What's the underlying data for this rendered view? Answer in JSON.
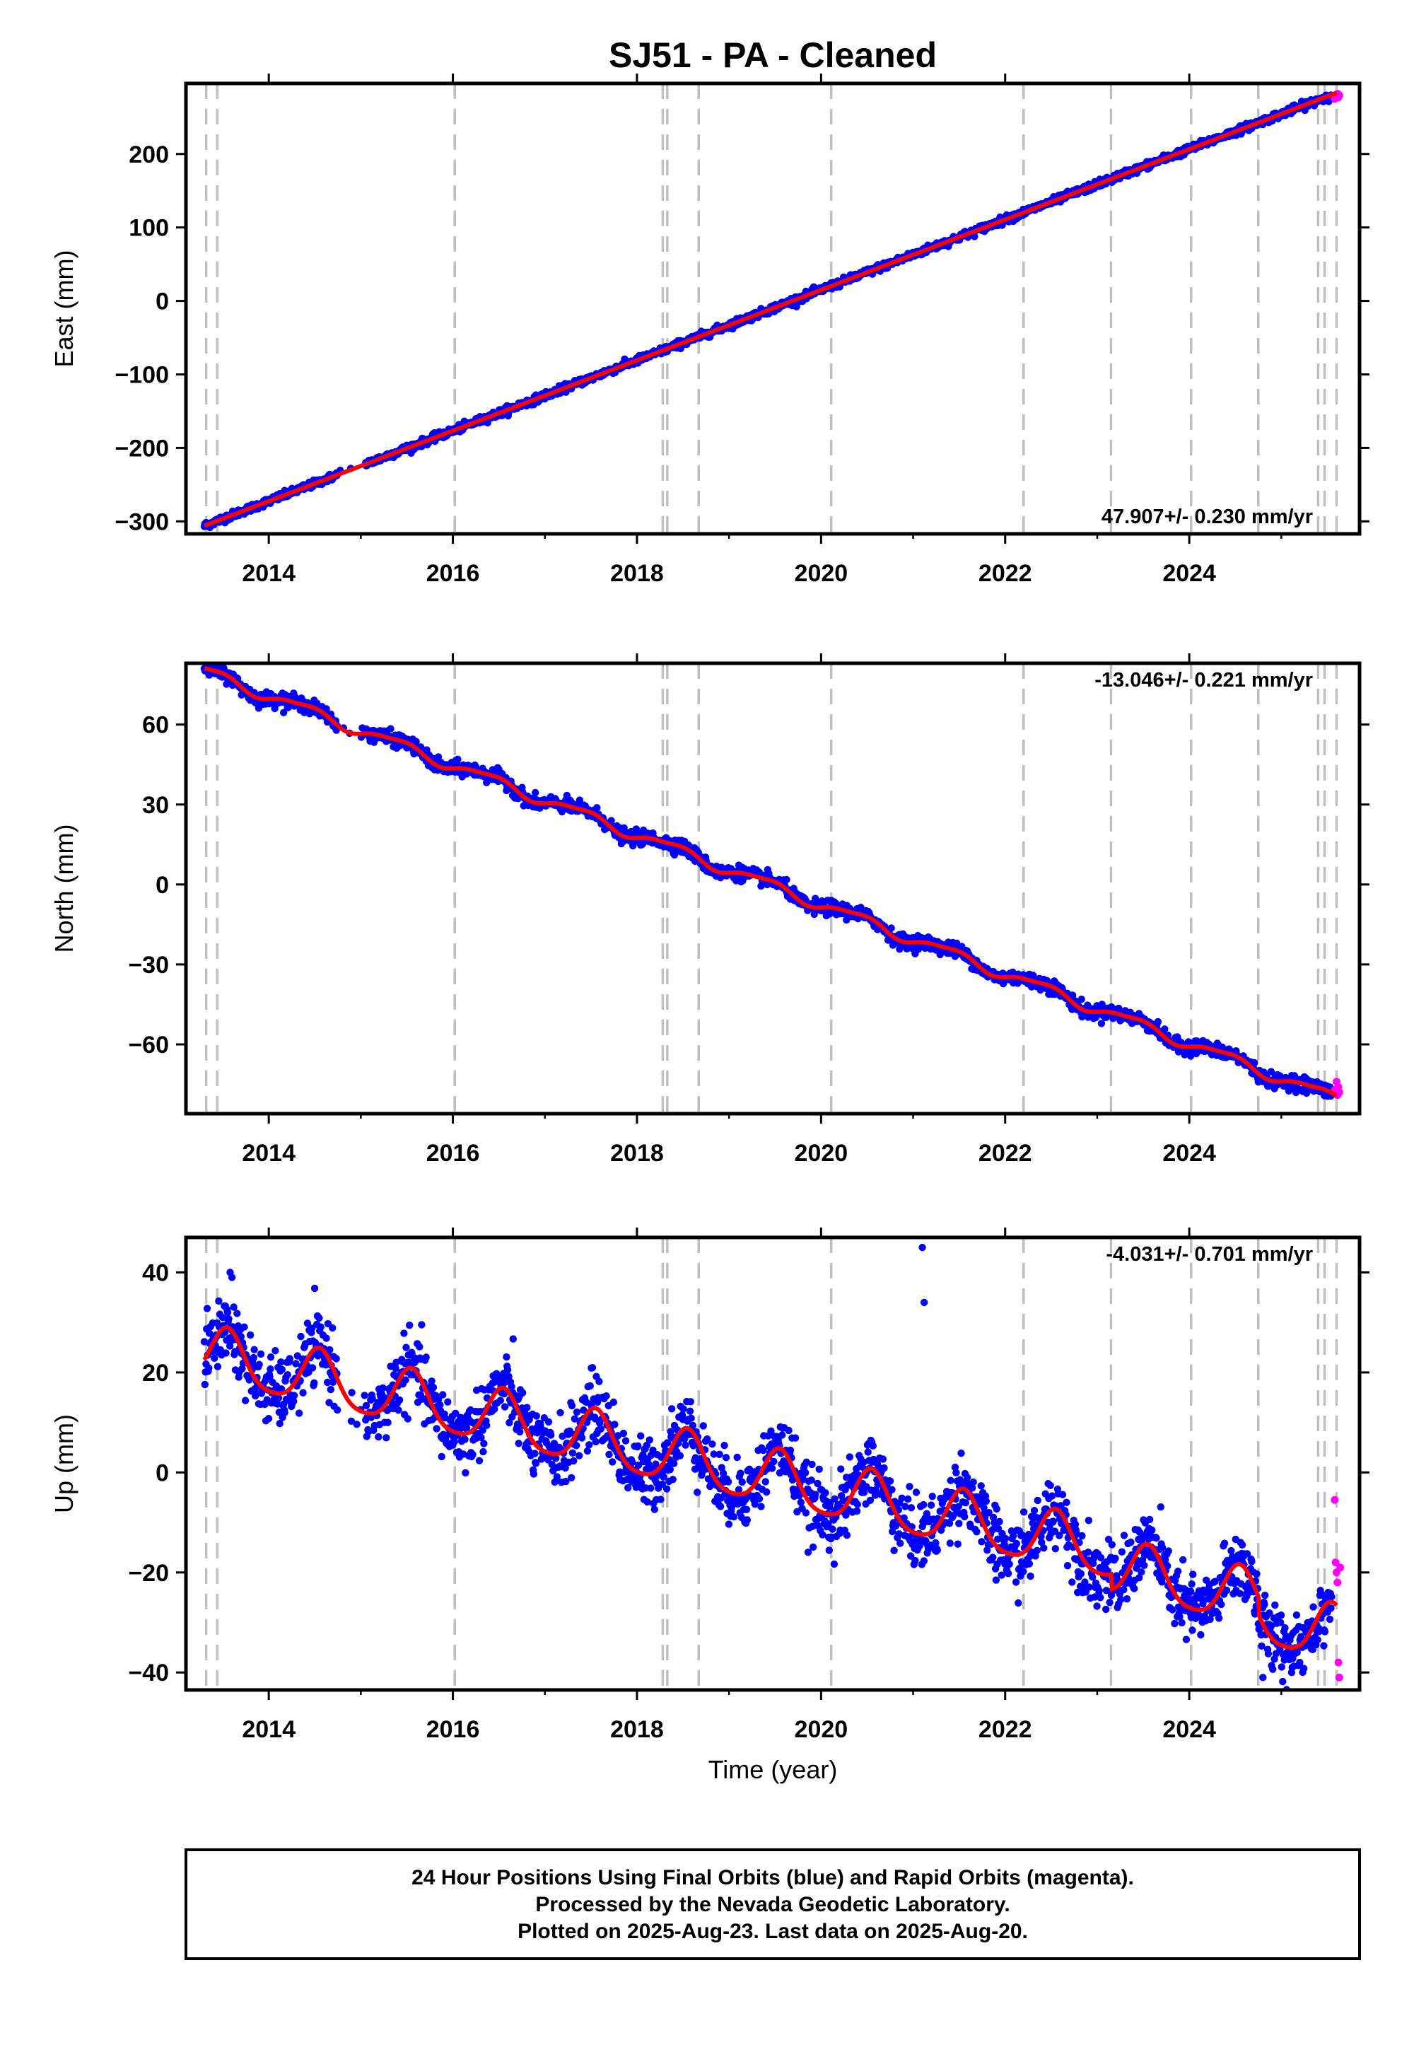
{
  "title": "SJ51  - PA - Cleaned",
  "xlabel": "Time (year)",
  "footer": {
    "line1": "24 Hour Positions Using Final Orbits (blue) and Rapid Orbits (magenta).",
    "line2": "Processed by the Nevada Geodetic Laboratory.",
    "line3": "Plotted on 2025-Aug-23. Last data on 2025-Aug-20."
  },
  "colors": {
    "final_orbits": "#0000ff",
    "rapid_orbits": "#ff00ff",
    "model": "#ff0000",
    "event_lines": "#bfbfbf",
    "frame": "#000000"
  },
  "chart_data": [
    {
      "type": "scatter",
      "id": "east",
      "ylabel": "East (mm)",
      "xlim": [
        2013.1,
        2025.85
      ],
      "ylim": [
        -317,
        296
      ],
      "yticks": [
        -300,
        -200,
        -100,
        0,
        100,
        200
      ],
      "xticks": [
        2014,
        2016,
        2018,
        2020,
        2022,
        2024
      ],
      "rate_label": "47.907+/- 0.230 mm/yr",
      "rate_position": "bottom-right",
      "series": [
        {
          "name": "Final Orbits",
          "color": "#0000ff",
          "model": {
            "type": "linear_plus_seasonal",
            "t0": 2013.3,
            "y0": -306,
            "rate": 47.907,
            "annual_amp": 0.0,
            "annual_phase": 0.0,
            "semiannual_amp": 0.0,
            "semiannual_phase": 0.0,
            "offsets": [],
            "scatter": 2.5,
            "t_start": 2013.3,
            "t_end": 2025.55
          }
        },
        {
          "name": "Rapid Orbits",
          "color": "#ff00ff",
          "points": [
            [
              2025.58,
              275
            ],
            [
              2025.6,
              279
            ],
            [
              2025.61,
              282
            ],
            [
              2025.62,
              277
            ],
            [
              2025.63,
              280
            ]
          ]
        }
      ],
      "event_lines": [
        2013.32,
        2013.44,
        2016.02,
        2018.28,
        2018.33,
        2018.67,
        2020.11,
        2022.2,
        2023.15,
        2024.02,
        2024.75,
        2025.4,
        2025.47,
        2025.6
      ]
    },
    {
      "type": "scatter",
      "id": "north",
      "ylabel": "North (mm)",
      "xlim": [
        2013.1,
        2025.85
      ],
      "ylim": [
        -86,
        83
      ],
      "yticks": [
        -60,
        -30,
        0,
        30,
        60
      ],
      "xticks": [
        2014,
        2016,
        2018,
        2020,
        2022,
        2024
      ],
      "rate_label": "-13.046+/- 0.221 mm/yr",
      "rate_position": "top-right",
      "series": [
        {
          "name": "Final Orbits",
          "color": "#0000ff",
          "model": {
            "type": "linear_plus_seasonal",
            "t0": 2013.3,
            "y0": 80,
            "rate": -13.046,
            "annual_amp": 2.0,
            "annual_phase": 5.4,
            "semiannual_amp": 0.6,
            "semiannual_phase": 0.5,
            "offsets": [],
            "scatter": 1.3,
            "t_start": 2013.3,
            "t_end": 2025.55
          }
        },
        {
          "name": "Rapid Orbits",
          "color": "#ff00ff",
          "points": [
            [
              2025.58,
              -77
            ],
            [
              2025.6,
              -74
            ],
            [
              2025.61,
              -79
            ],
            [
              2025.62,
              -76
            ],
            [
              2025.63,
              -78
            ]
          ]
        }
      ],
      "event_lines": [
        2013.32,
        2013.44,
        2016.02,
        2018.28,
        2018.33,
        2018.67,
        2020.11,
        2022.2,
        2023.15,
        2024.02,
        2024.75,
        2025.4,
        2025.47,
        2025.6
      ]
    },
    {
      "type": "scatter",
      "id": "up",
      "ylabel": "Up (mm)",
      "xlim": [
        2013.1,
        2025.85
      ],
      "ylim": [
        -43.5,
        47
      ],
      "yticks": [
        -40,
        -20,
        0,
        20,
        40
      ],
      "xticks": [
        2014,
        2016,
        2018,
        2020,
        2022,
        2024
      ],
      "rate_label": "-4.031+/- 0.701 mm/yr",
      "rate_position": "top-right",
      "series": [
        {
          "name": "Final Orbits",
          "color": "#0000ff",
          "model": {
            "type": "linear_plus_seasonal",
            "t0": 2013.3,
            "y0": 23.5,
            "rate": -4.031,
            "annual_amp": 5.5,
            "annual_phase": 4.4,
            "semiannual_amp": 1.0,
            "semiannual_phase": 1.0,
            "offsets": [
              [
                2023.15,
                -3.0
              ],
              [
                2024.75,
                -3.5
              ]
            ],
            "scatter": 3.4,
            "t_start": 2013.3,
            "t_end": 2025.55
          },
          "outliers": [
            [
              2013.58,
              40
            ],
            [
              2013.6,
              39
            ],
            [
              2021.1,
              45
            ],
            [
              2021.12,
              34
            ],
            [
              2024.8,
              -41
            ],
            [
              2025.2,
              -38
            ]
          ]
        },
        {
          "name": "Rapid Orbits",
          "color": "#ff00ff",
          "points": [
            [
              2025.58,
              -5.5
            ],
            [
              2025.59,
              -18
            ],
            [
              2025.6,
              -20
            ],
            [
              2025.61,
              -22
            ],
            [
              2025.62,
              -38
            ],
            [
              2025.63,
              -41
            ],
            [
              2025.64,
              -19
            ]
          ]
        }
      ],
      "event_lines": [
        2013.32,
        2013.44,
        2016.02,
        2018.28,
        2018.33,
        2018.67,
        2020.11,
        2022.2,
        2023.15,
        2024.02,
        2024.75,
        2025.4,
        2025.47,
        2025.6
      ]
    }
  ]
}
